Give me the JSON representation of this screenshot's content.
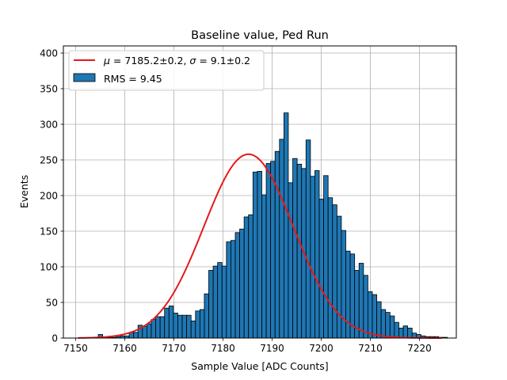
{
  "chart_data": {
    "type": "bar",
    "title": "Baseline value, Ped Run",
    "xlabel": "Sample Value [ADC Counts]",
    "ylabel": "Events",
    "xlim": [
      7147.5,
      7227.5
    ],
    "ylim": [
      0,
      410
    ],
    "xticks": [
      7150,
      7160,
      7170,
      7180,
      7190,
      7200,
      7210,
      7220
    ],
    "yticks": [
      0,
      50,
      100,
      150,
      200,
      250,
      300,
      350,
      400
    ],
    "grid": true,
    "legend_position": "top-left",
    "bins": {
      "start": 7151,
      "width": 0.9,
      "counts": [
        0,
        0,
        1,
        1,
        5,
        1,
        1,
        1,
        2,
        3,
        3,
        8,
        8,
        18,
        16,
        20,
        26,
        30,
        30,
        42,
        45,
        35,
        32,
        32,
        32,
        24,
        38,
        40,
        62,
        95,
        101,
        106,
        101,
        135,
        137,
        148,
        153,
        170,
        173,
        233,
        234,
        201,
        245,
        248,
        262,
        279,
        316,
        218,
        252,
        244,
        238,
        278,
        227,
        235,
        195,
        228,
        197,
        187,
        171,
        151,
        122,
        118,
        95,
        105,
        88,
        65,
        61,
        51,
        40,
        36,
        31,
        22,
        14,
        17,
        14,
        7,
        5,
        3,
        2,
        2,
        2,
        1,
        1,
        0
      ],
      "fill": "#1f77b4",
      "edge": "#000000"
    },
    "series": [
      {
        "name": "$\\mu = 7185.2\\pm0.2$, $\\sigma = 9.1\\pm0.2$",
        "type": "gaussian-fit",
        "mu": 7185.2,
        "sigma": 9.1,
        "amplitude": 258,
        "x_range": [
          7150.5,
          7224.5
        ],
        "color": "#e41a1c"
      }
    ],
    "legend": [
      {
        "kind": "line",
        "color": "#e41a1c",
        "mu_sym": "μ",
        "mu_eq": " = 7185.2±0.2, ",
        "sigma_sym": "σ",
        "sigma_eq": " = 9.1±0.2"
      },
      {
        "kind": "patch",
        "color": "#1f77b4",
        "label": "RMS = 9.45"
      }
    ]
  }
}
